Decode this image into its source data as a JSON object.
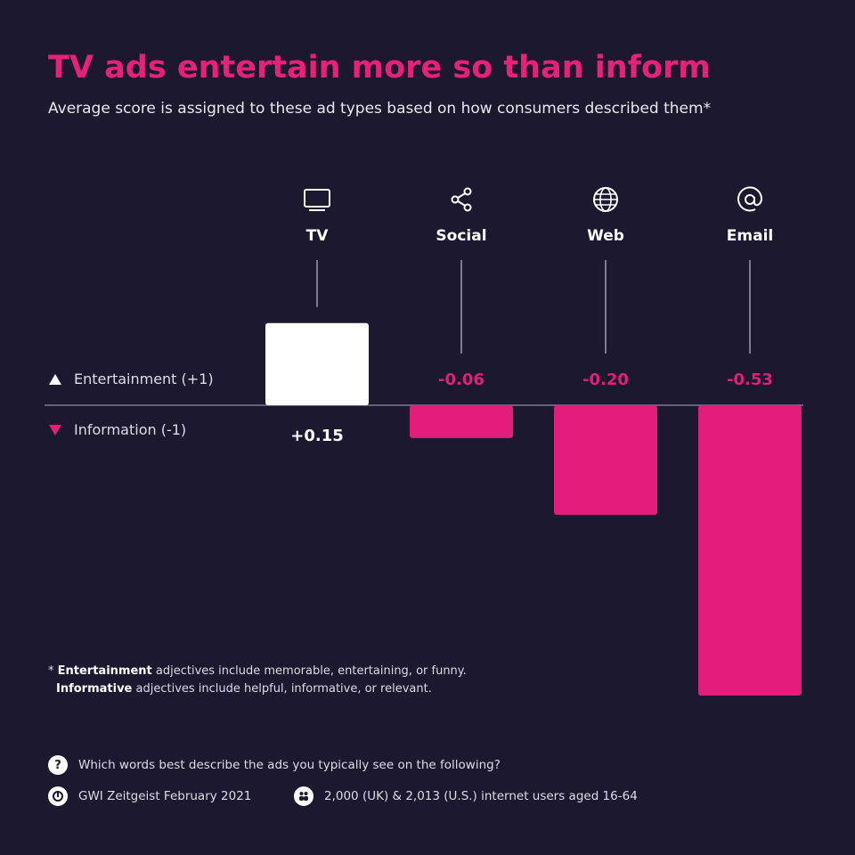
{
  "title": "TV ads entertain more so than inform",
  "subtitle": "Average score is assigned to these ad types based on how consumers described them*",
  "legend": {
    "positive": "Entertainment (+1)",
    "negative": "Information (-1)"
  },
  "colors": {
    "background": "#1b1830",
    "accent": "#e31d7a",
    "positive_bar": "#ffffff"
  },
  "chart_data": {
    "type": "bar",
    "categories": [
      "TV",
      "Social",
      "Web",
      "Email"
    ],
    "icons": [
      "tv-icon",
      "share-icon",
      "globe-icon",
      "at-icon"
    ],
    "values": [
      0.15,
      -0.06,
      -0.2,
      -0.53
    ],
    "value_labels": [
      "+0.15",
      "-0.06",
      "-0.20",
      "-0.53"
    ],
    "ylim": [
      -0.53,
      0.15
    ]
  },
  "footnote": {
    "line1_bold": "Entertainment",
    "line1_rest": " adjectives include memorable, entertaining, or funny.",
    "line2_bold": "Informative",
    "line2_rest": " adjectives include helpful, informative, or relevant."
  },
  "meta": {
    "question_icon_text": "?",
    "question": "Which words best describe the ads you typically see on the following?",
    "source": "GWI Zeitgeist February 2021",
    "sample": "2,000 (UK) & 2,013 (U.S.) internet users aged 16-64"
  }
}
